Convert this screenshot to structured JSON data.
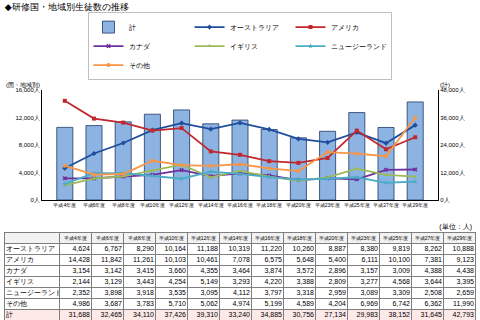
{
  "chart_data": {
    "type": "line",
    "title": "◆研修国・地域別生徒数の推移",
    "ylabel": "(国・地域別)",
    "y2label": "(計)",
    "categories": [
      "平成4年度",
      "平成6年度",
      "平成8年度",
      "平成10年度",
      "平成12年度",
      "平成14年度",
      "平成16年度",
      "平成18年度",
      "平成20年度",
      "平成23年度",
      "平成25年度",
      "平成27年度",
      "平成29年度"
    ],
    "series": [
      {
        "name": "計",
        "type": "bar",
        "axis": "y2",
        "color": "#8db3e2",
        "values": [
          31688,
          32465,
          34110,
          37426,
          39310,
          33240,
          34885,
          30756,
          27134,
          29983,
          38152,
          31645,
          42793
        ]
      },
      {
        "name": "オーストラリア",
        "color": "#1f4e9c",
        "marker": "diamond",
        "values": [
          4624,
          6767,
          8290,
          10164,
          11188,
          10319,
          11220,
          10260,
          8887,
          8380,
          9819,
          8262,
          10888
        ]
      },
      {
        "name": "アメリカ",
        "color": "#c0282d",
        "marker": "square",
        "values": [
          14428,
          11842,
          11261,
          10103,
          10461,
          7078,
          6575,
          5648,
          5400,
          6111,
          10100,
          7381,
          9123
        ]
      },
      {
        "name": "カナダ",
        "color": "#7030a0",
        "marker": "x",
        "values": [
          3154,
          3142,
          3415,
          3660,
          4355,
          3464,
          3874,
          3572,
          2896,
          3157,
          3009,
          4388,
          4438
        ]
      },
      {
        "name": "イギリス",
        "color": "#9bbb59",
        "marker": "triangle-up",
        "values": [
          2144,
          3129,
          3443,
          4254,
          5149,
          3293,
          4220,
          3388,
          2809,
          3277,
          4568,
          3644,
          3395
        ]
      },
      {
        "name": "ニュージーランド",
        "color": "#4bacc6",
        "marker": "star",
        "values": [
          2352,
          3898,
          3918,
          3535,
          3095,
          4112,
          3797,
          3318,
          2959,
          3089,
          3309,
          2508,
          2659
        ]
      },
      {
        "name": "その他",
        "color": "#f79646",
        "marker": "circle",
        "values": [
          4986,
          3687,
          3783,
          5710,
          5062,
          4974,
          5199,
          4589,
          4204,
          6969,
          6742,
          6362,
          11990
        ]
      }
    ],
    "ylim": [
      0,
      16000
    ],
    "yticks": [
      {
        "value": 0,
        "label": "0人"
      },
      {
        "value": 4000,
        "label": "4,000人"
      },
      {
        "value": 8000,
        "label": "8,000人"
      },
      {
        "value": 12000,
        "label": "12,000人"
      },
      {
        "value": 16000,
        "label": "16,000人"
      }
    ],
    "y2lim": [
      0,
      48000
    ],
    "y2ticks": [
      {
        "value": 0,
        "label": "0人"
      },
      {
        "value": 12000,
        "label": "12,000人"
      },
      {
        "value": 24000,
        "label": "24,000人"
      },
      {
        "value": 36000,
        "label": "36,000人"
      },
      {
        "value": 48000,
        "label": "48,000人"
      }
    ],
    "grid": false,
    "legend": "top"
  },
  "table": {
    "note": "(単位：人)",
    "header": [
      "平成4年度",
      "平成6年度",
      "平成8年度",
      "平成10年度",
      "平成12年度",
      "平成14年度",
      "平成16年度",
      "平成18年度",
      "平成20年度",
      "平成23年度",
      "平成25年度",
      "平成27年度",
      "平成29年度"
    ],
    "rows": [
      [
        "オーストラリア",
        "4,624",
        "6,767",
        "8,290",
        "10,164",
        "11,188",
        "10,319",
        "11,220",
        "10,260",
        "8,887",
        "8,380",
        "9,819",
        "8,262",
        "10,888"
      ],
      [
        "アメリカ",
        "14,428",
        "11,842",
        "11,261",
        "10,103",
        "10,461",
        "7,078",
        "6,575",
        "5,648",
        "5,400",
        "6,111",
        "10,100",
        "7,381",
        "9,123"
      ],
      [
        "カナダ",
        "3,154",
        "3,142",
        "3,415",
        "3,660",
        "4,355",
        "3,464",
        "3,874",
        "3,572",
        "2,896",
        "3,157",
        "3,009",
        "4,388",
        "4,438"
      ],
      [
        "イギリス",
        "2,144",
        "3,129",
        "3,443",
        "4,254",
        "5,149",
        "3,293",
        "4,220",
        "3,388",
        "2,809",
        "3,277",
        "4,568",
        "3,644",
        "3,395"
      ],
      [
        "ニュージーランド",
        "2,352",
        "3,898",
        "3,918",
        "3,535",
        "3,095",
        "4,112",
        "3,797",
        "3,318",
        "2,959",
        "3,089",
        "3,309",
        "2,508",
        "2,659"
      ],
      [
        "その他",
        "4,986",
        "3,687",
        "3,783",
        "5,710",
        "5,062",
        "4,974",
        "5,199",
        "4,589",
        "4,204",
        "6,969",
        "6,742",
        "6,362",
        "11,990"
      ],
      [
        "計",
        "31,688",
        "32,465",
        "34,110",
        "37,426",
        "39,310",
        "33,240",
        "34,885",
        "30,756",
        "27,134",
        "29,983",
        "38,152",
        "31,645",
        "42,793"
      ]
    ]
  }
}
